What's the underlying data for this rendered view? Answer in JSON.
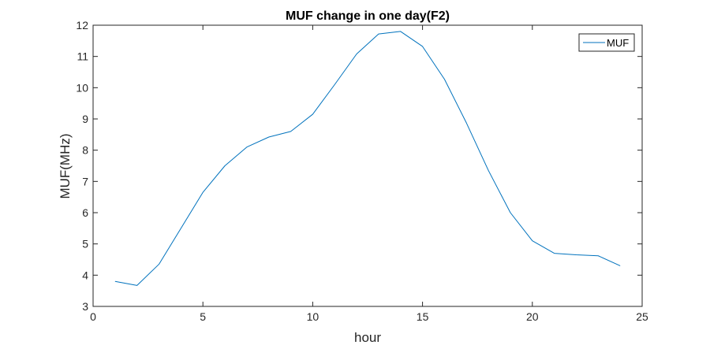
{
  "chart_data": {
    "type": "line",
    "title": "MUF change in one day(F2)",
    "xlabel": "hour",
    "ylabel": "MUF(MHz)",
    "xlim": [
      0,
      25
    ],
    "ylim": [
      3,
      12
    ],
    "xticks": [
      0,
      5,
      10,
      15,
      20,
      25
    ],
    "yticks": [
      3,
      4,
      5,
      6,
      7,
      8,
      9,
      10,
      11,
      12
    ],
    "xtick_labels": [
      "0",
      "5",
      "10",
      "15",
      "20",
      "25"
    ],
    "ytick_labels": [
      "3",
      "4",
      "5",
      "6",
      "7",
      "8",
      "9",
      "10",
      "11",
      "12"
    ],
    "grid": false,
    "legend_position": "top-right",
    "series": [
      {
        "name": "MUF",
        "color": "#0072BD",
        "x": [
          1,
          2,
          3,
          4,
          5,
          6,
          7,
          8,
          9,
          10,
          11,
          12,
          13,
          14,
          15,
          16,
          17,
          18,
          19,
          20,
          21,
          22,
          23,
          24
        ],
        "y": [
          3.8,
          3.67,
          4.35,
          5.5,
          6.65,
          7.5,
          8.1,
          8.42,
          8.6,
          9.15,
          10.1,
          11.08,
          11.72,
          11.8,
          11.32,
          10.27,
          8.87,
          7.35,
          6.0,
          5.1,
          4.7,
          4.65,
          4.62,
          4.3
        ]
      }
    ]
  }
}
